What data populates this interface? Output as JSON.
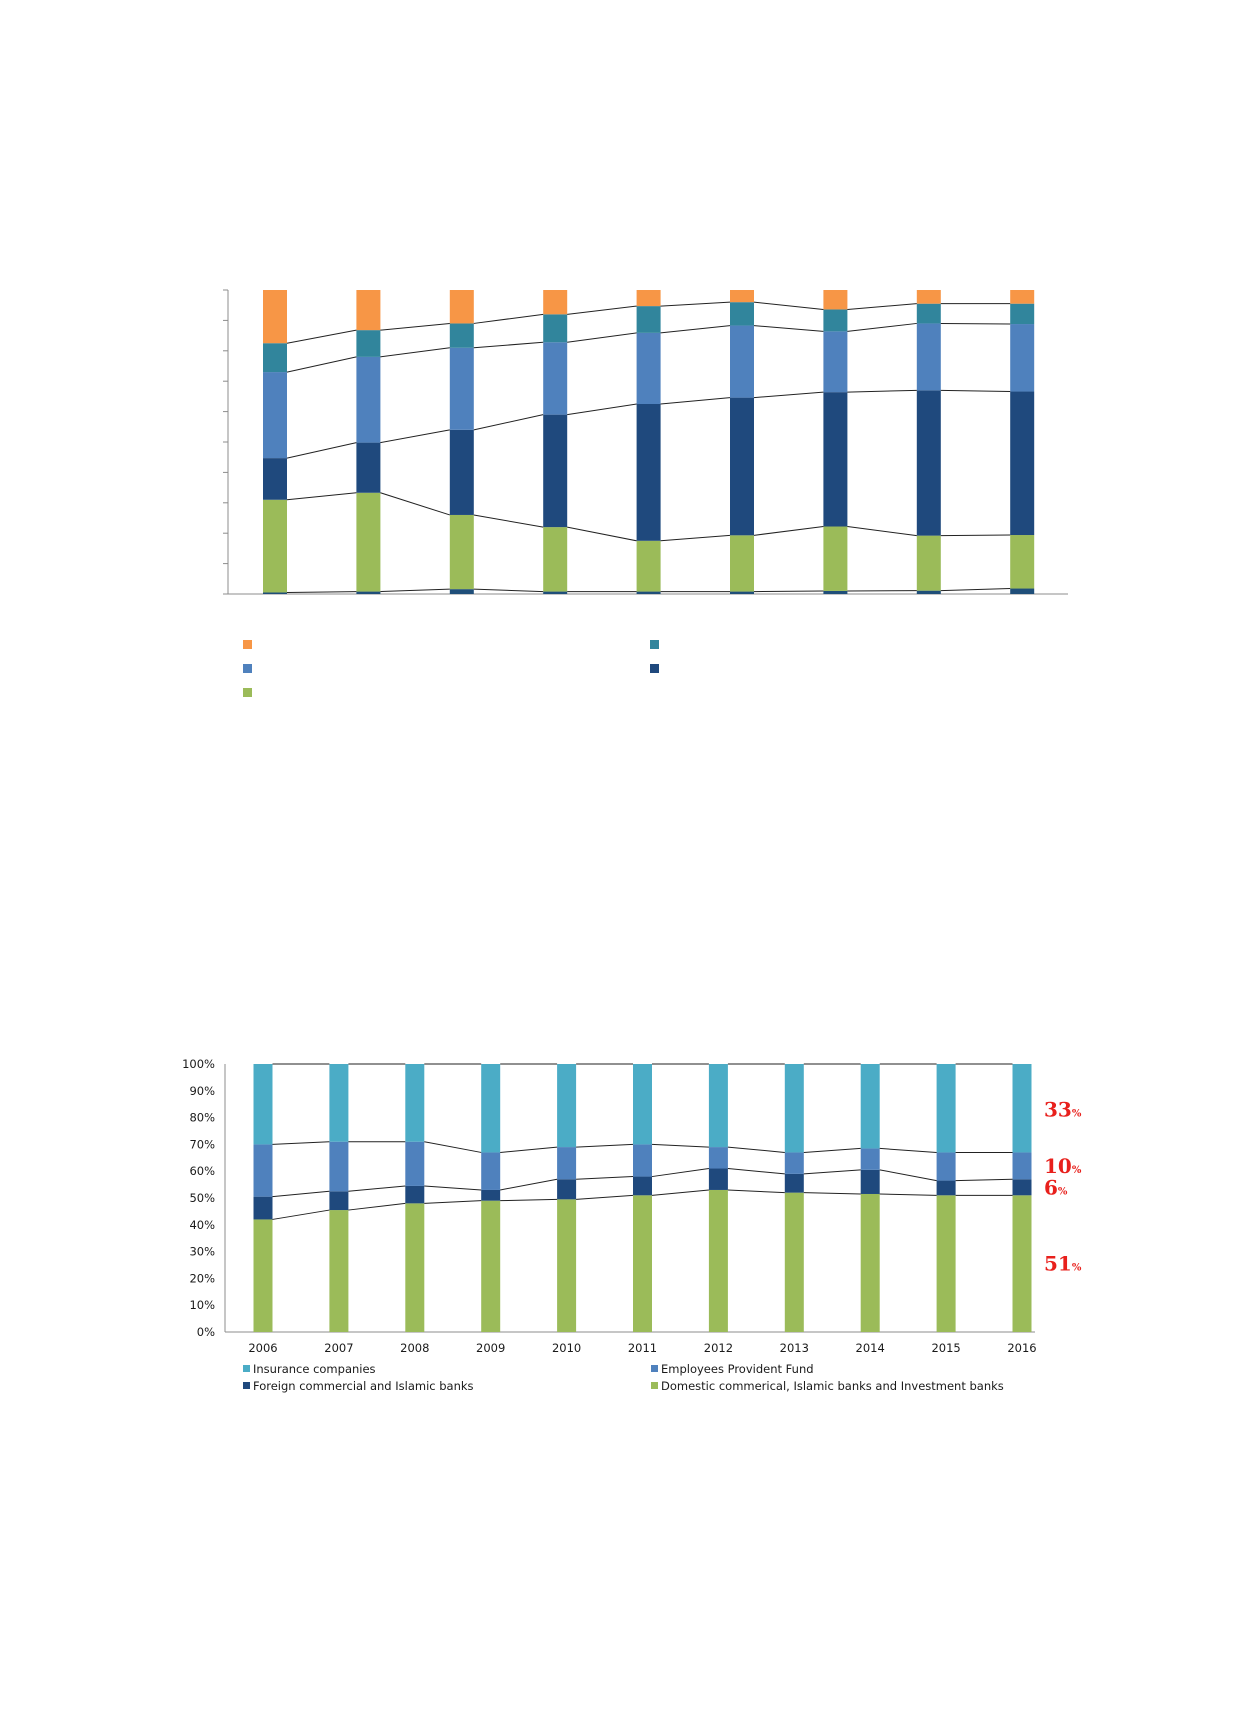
{
  "chart_data": [
    {
      "type": "bar",
      "stacked": true,
      "title": "",
      "xlabel": "",
      "ylabel": "",
      "ylim": [
        0,
        100
      ],
      "categories": [
        "",
        "",
        "",
        "",
        "",
        "",
        "",
        "",
        ""
      ],
      "series": [
        {
          "name": "",
          "color": "#1f4e79",
          "values": [
            0.5,
            0.8,
            1.6,
            0.8,
            0.8,
            0.8,
            1.0,
            1.1,
            1.8
          ]
        },
        {
          "name": "",
          "color": "#9bbb59",
          "values": [
            30.5,
            32.5,
            24.4,
            21.2,
            16.7,
            18.5,
            21.2,
            18.1,
            17.6
          ]
        },
        {
          "name": "",
          "color": "#1f497d",
          "values": [
            13.7,
            16.5,
            28.0,
            37.0,
            45.0,
            45.3,
            44.2,
            47.8,
            47.2
          ]
        },
        {
          "name": "",
          "color": "#4f81bd",
          "values": [
            28.3,
            28.2,
            27.0,
            23.8,
            23.4,
            23.7,
            20.0,
            22.0,
            22.2
          ]
        },
        {
          "name": "",
          "color": "#31859c",
          "values": [
            9.5,
            8.8,
            8.0,
            9.2,
            8.8,
            7.7,
            7.2,
            6.5,
            6.7
          ]
        },
        {
          "name": "",
          "color": "#f79646",
          "values": [
            17.5,
            13.2,
            11.0,
            8.0,
            5.3,
            4.0,
            6.4,
            4.5,
            4.5
          ]
        }
      ],
      "legend": [
        "",
        "",
        "",
        "",
        ""
      ],
      "legend_colors": [
        "#f79646",
        "#31859c",
        "#4f81bd",
        "#1f497d",
        "#9bbb59"
      ],
      "legend_position": "bottom"
    },
    {
      "type": "bar",
      "stacked": true,
      "title": "",
      "xlabel": "",
      "ylabel": "",
      "ylim": [
        0,
        100
      ],
      "yticks": [
        "0%",
        "10%",
        "20%",
        "30%",
        "40%",
        "50%",
        "60%",
        "70%",
        "80%",
        "90%",
        "100%"
      ],
      "categories": [
        "2006",
        "2007",
        "2008",
        "2009",
        "2010",
        "2011",
        "2012",
        "2013",
        "2014",
        "2015",
        "2016"
      ],
      "series": [
        {
          "name": "Domestic commerical, Islamic banks and Investment banks",
          "color": "#9bbb59",
          "values": [
            42,
            45.5,
            48,
            49,
            49.5,
            51,
            53,
            52,
            51.5,
            51,
            51
          ]
        },
        {
          "name": "Foreign commercial and Islamic banks",
          "color": "#1f497d",
          "values": [
            8.5,
            7,
            6.5,
            4,
            7.5,
            7,
            8,
            7,
            9,
            5.5,
            6
          ]
        },
        {
          "name": "Employees Provident Fund",
          "color": "#4f81bd",
          "values": [
            19.5,
            18.5,
            16.5,
            14,
            12,
            12,
            8,
            8,
            8,
            10.5,
            10
          ]
        },
        {
          "name": "Insurance companies",
          "color": "#4bacc6",
          "values": [
            30,
            29,
            29,
            33,
            31,
            30,
            31,
            33,
            31.5,
            33,
            33
          ]
        }
      ],
      "annotations": [
        {
          "label": "33",
          "unit": "%",
          "series": "Insurance companies"
        },
        {
          "label": "10",
          "unit": "%",
          "series": "Employees Provident Fund"
        },
        {
          "label": "6",
          "unit": "%",
          "series": "Foreign commercial and Islamic banks"
        },
        {
          "label": "51",
          "unit": "%",
          "series": "Domestic commerical, Islamic banks and Investment banks"
        }
      ],
      "legend": [
        {
          "label": "Insurance companies",
          "color": "#4bacc6"
        },
        {
          "label": "Employees Provident Fund",
          "color": "#4f81bd"
        },
        {
          "label": "Foreign commercial and Islamic banks",
          "color": "#1f497d"
        },
        {
          "label": "Domestic commerical, Islamic banks and Investment banks",
          "color": "#9bbb59"
        }
      ],
      "legend_position": "bottom"
    }
  ]
}
